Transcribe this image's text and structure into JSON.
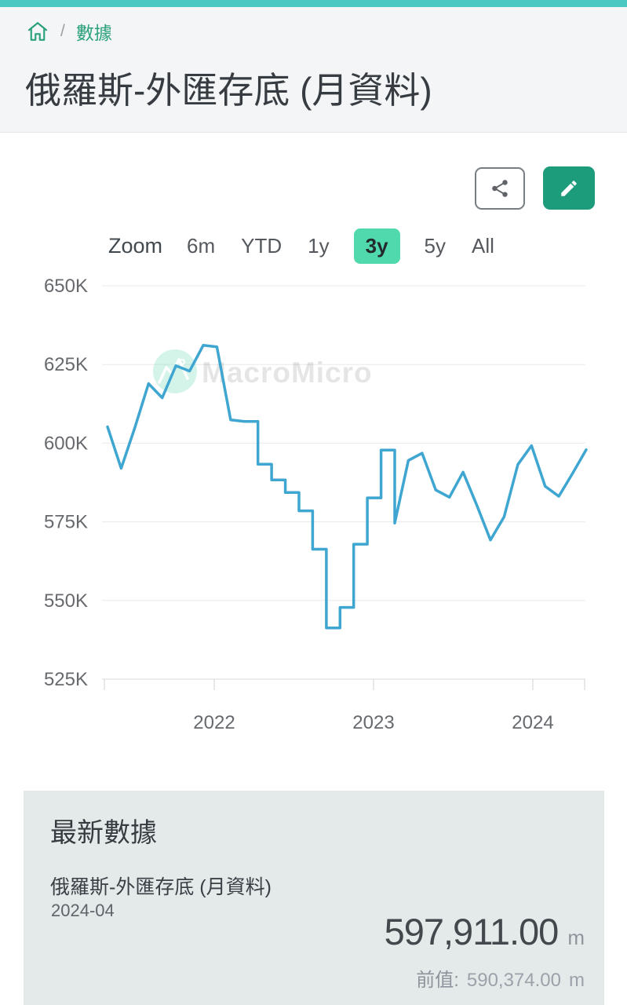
{
  "breadcrumb": {
    "separator": "/",
    "label": "數據"
  },
  "header": {
    "title": "俄羅斯-外匯存底 (月資料)"
  },
  "range_selector": {
    "label": "Zoom",
    "options": [
      "6m",
      "YTD",
      "1y",
      "3y",
      "5y",
      "All"
    ],
    "selected": "3y"
  },
  "watermark": {
    "text": "MacroMicro"
  },
  "chart_data": {
    "type": "line",
    "title": "俄羅斯-外匯存底 (月資料)",
    "series_name": "俄羅斯-外匯存底",
    "line_color": "#3ea6d0",
    "grid": true,
    "legend": "none",
    "y_tick_labels": [
      "650K",
      "625K",
      "600K",
      "575K",
      "550K",
      "525K"
    ],
    "y_tick_values_k": [
      650,
      625,
      600,
      575,
      550,
      525
    ],
    "ylim_k": [
      525,
      650
    ],
    "x_tick_labels": [
      "2022",
      "2023",
      "2024"
    ],
    "x": [
      "2021-05",
      "2021-06",
      "2021-07",
      "2021-08",
      "2021-09",
      "2021-10",
      "2021-11",
      "2021-12",
      "2022-01",
      "2022-02",
      "2022-03",
      "2022-04",
      "2022-05",
      "2022-06",
      "2022-07",
      "2022-08",
      "2022-09",
      "2022-10",
      "2022-11",
      "2022-12",
      "2023-01",
      "2023-02",
      "2023-03",
      "2023-04",
      "2023-05",
      "2023-06",
      "2023-07",
      "2023-08",
      "2023-09",
      "2023-10",
      "2023-11",
      "2023-12",
      "2024-01",
      "2024-02",
      "2024-03",
      "2024-04"
    ],
    "values_k": [
      605.2,
      592.0,
      605.0,
      618.9,
      614.4,
      624.6,
      622.9,
      631.1,
      630.6,
      607.4,
      606.9,
      593.3,
      588.3,
      584.3,
      578.5,
      566.3,
      541.3,
      547.8,
      567.9,
      582.6,
      597.8,
      574.6,
      594.5,
      596.8,
      585.1,
      582.8,
      590.8,
      580.3,
      569.2,
      576.6,
      593.2,
      599.2,
      586.3,
      583.1,
      590.374,
      597.911
    ],
    "step_render_range": [
      "2022-03",
      "2023-01"
    ],
    "unit": "m"
  },
  "latest_panel": {
    "heading": "最新數據",
    "series_name": "俄羅斯-外匯存底 (月資料)",
    "date": "2024-04",
    "value": "597,911.00",
    "unit": "m",
    "prev_label": "前值:",
    "prev_value": "590,374.00",
    "prev_unit": "m"
  }
}
